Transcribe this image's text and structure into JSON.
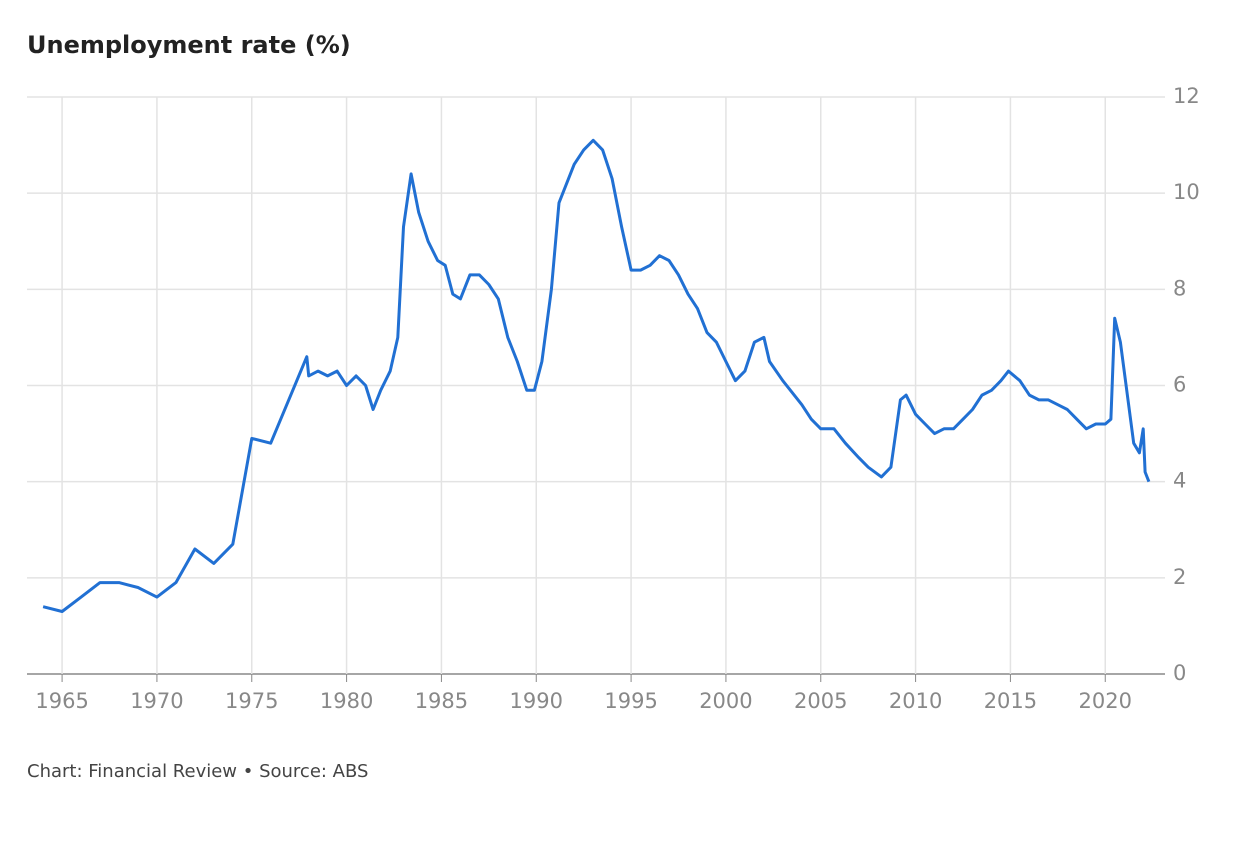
{
  "chart_data": {
    "type": "line",
    "title": "Unemployment rate (%)",
    "source": "Chart: Financial Review • Source: ABS",
    "x": [
      1964,
      1965,
      1966,
      1967,
      1968,
      1969,
      1970,
      1971,
      1972,
      1973,
      1974,
      1975,
      1976,
      1977.9,
      1978,
      1978.5,
      1979,
      1979.5,
      1980,
      1980.5,
      1981,
      1981.4,
      1981.8,
      1982.3,
      1982.7,
      1983,
      1983.4,
      1983.8,
      1984.3,
      1984.8,
      1985.2,
      1985.6,
      1986,
      1986.5,
      1987,
      1987.5,
      1988,
      1988.5,
      1989,
      1989.5,
      1989.9,
      1990.3,
      1990.8,
      1991.2,
      1991.6,
      1992,
      1992.5,
      1993,
      1993.5,
      1994,
      1994.5,
      1995,
      1995.5,
      1996,
      1996.5,
      1997,
      1997.5,
      1998,
      1998.5,
      1999,
      1999.5,
      2000,
      2000.5,
      2001,
      2001.5,
      2002,
      2002.3,
      2003,
      2004,
      2004.5,
      2005,
      2005.7,
      2006.3,
      2007,
      2007.5,
      2008.2,
      2008.7,
      2009.2,
      2009.5,
      2010,
      2010.5,
      2011,
      2011.5,
      2012,
      2012.5,
      2013,
      2013.5,
      2014,
      2014.5,
      2014.9,
      2015.5,
      2016,
      2016.5,
      2017,
      2017.5,
      2018,
      2018.5,
      2019,
      2019.5,
      2020,
      2020.3,
      2020.5,
      2020.8,
      2021.2,
      2021.5,
      2021.8,
      2022,
      2022.1,
      2022.3
    ],
    "series": [
      {
        "name": "Unemployment rate",
        "color": "#2170d3",
        "values": [
          1.4,
          1.3,
          1.6,
          1.9,
          1.9,
          1.8,
          1.6,
          1.9,
          2.6,
          2.3,
          2.7,
          4.9,
          4.8,
          6.6,
          6.2,
          6.3,
          6.2,
          6.3,
          6.0,
          6.2,
          6.0,
          5.5,
          5.9,
          6.3,
          7.0,
          9.3,
          10.4,
          9.6,
          9.0,
          8.6,
          8.5,
          7.9,
          7.8,
          8.3,
          8.3,
          8.1,
          7.8,
          7.0,
          6.5,
          5.9,
          5.9,
          6.5,
          8.0,
          9.8,
          10.2,
          10.6,
          10.9,
          11.1,
          10.9,
          10.3,
          9.3,
          8.4,
          8.4,
          8.5,
          8.7,
          8.6,
          8.3,
          7.9,
          7.6,
          7.1,
          6.9,
          6.5,
          6.1,
          6.3,
          6.9,
          7.0,
          6.5,
          6.1,
          5.6,
          5.3,
          5.1,
          5.1,
          4.8,
          4.5,
          4.3,
          4.1,
          4.3,
          5.7,
          5.8,
          5.4,
          5.2,
          5.0,
          5.1,
          5.1,
          5.3,
          5.5,
          5.8,
          5.9,
          6.1,
          6.3,
          6.1,
          5.8,
          5.7,
          5.7,
          5.6,
          5.5,
          5.3,
          5.1,
          5.2,
          5.2,
          5.3,
          7.4,
          6.9,
          5.7,
          4.8,
          4.6,
          5.1,
          4.2,
          4.0
        ]
      }
    ],
    "xlim": [
      1963.15,
      2023.15
    ],
    "xticks": [
      1965,
      1970,
      1975,
      1980,
      1985,
      1990,
      1995,
      2000,
      2005,
      2010,
      2015,
      2020
    ],
    "ylim": [
      0,
      12
    ],
    "yticks": [
      0,
      2,
      4,
      6,
      8,
      10,
      12
    ],
    "grid": true
  }
}
